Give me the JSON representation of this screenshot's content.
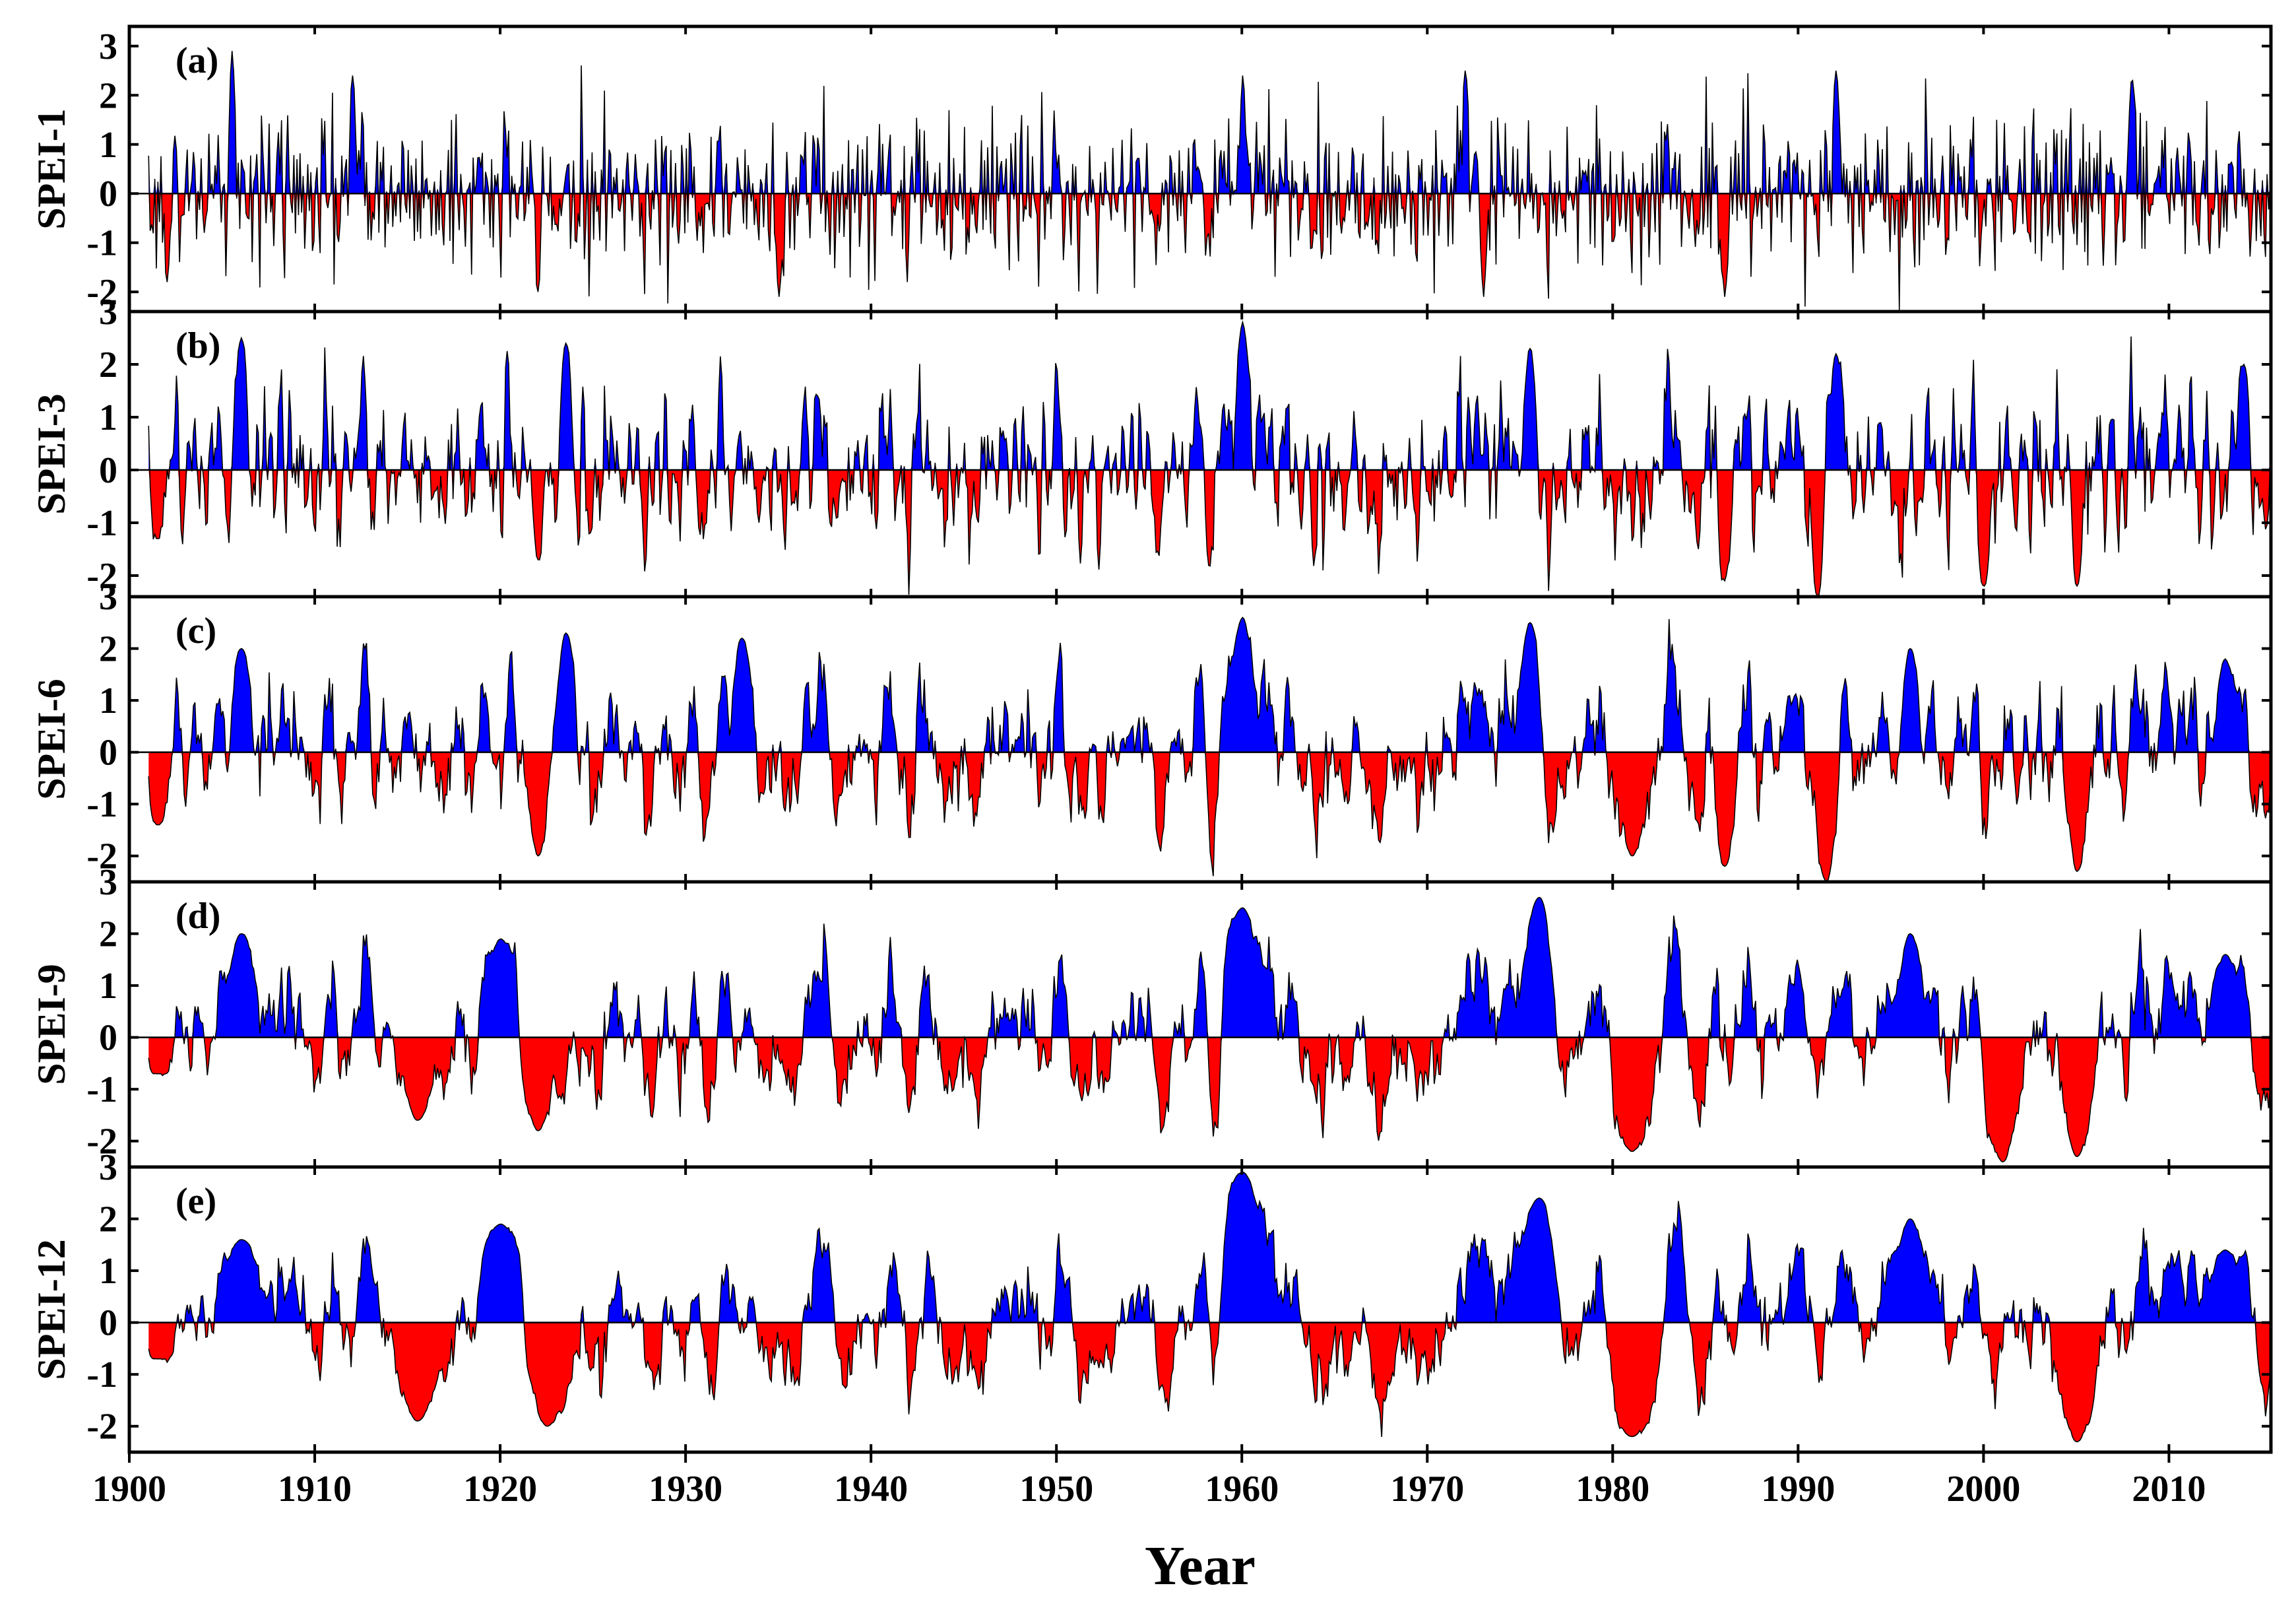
{
  "chart_data": {
    "type": "area",
    "xlabel": "Year",
    "xlim": [
      1900,
      2015.5
    ],
    "x_ticks": [
      1900,
      1910,
      1920,
      1930,
      1940,
      1950,
      1960,
      1970,
      1980,
      1990,
      2000,
      2010
    ],
    "x_tick_labels": [
      "1900",
      "1910",
      "1920",
      "1930",
      "1940",
      "1950",
      "1960",
      "1970",
      "1980",
      "1990",
      "2000",
      "2010"
    ],
    "positive_color": "#0000ff",
    "negative_color": "#ff0000",
    "outline_color": "#000000",
    "background_color": "#ffffff",
    "panels": [
      {
        "id": "a",
        "label": "(a)",
        "ylabel": "SPEI-1",
        "ylim": [
          -2.4,
          3.4
        ],
        "yticks": [
          -2,
          -1,
          0,
          1,
          2,
          3
        ],
        "ytick_labels": [
          "-2",
          "-1",
          "0",
          "1",
          "2",
          "3"
        ],
        "scale_months": 1,
        "anchors": [
          [
            1902,
            -1.8
          ],
          [
            1905.5,
            2.9
          ],
          [
            1912,
            2.4
          ],
          [
            1922,
            -2.0
          ],
          [
            1935,
            -2.1
          ],
          [
            1960,
            2.4
          ],
          [
            1972,
            2.5
          ],
          [
            1973,
            -2.1
          ],
          [
            1986,
            -2.1
          ],
          [
            1992,
            2.5
          ],
          [
            2008,
            2.3
          ]
        ]
      },
      {
        "id": "b",
        "label": "(b)",
        "ylabel": "SPEI-3",
        "ylim": [
          -2.4,
          3.0
        ],
        "yticks": [
          -2,
          -1,
          0,
          1,
          2,
          3
        ],
        "ytick_labels": [
          "-2",
          "-1",
          "0",
          "1",
          "2",
          "3"
        ],
        "scale_months": 3,
        "anchors": [
          [
            1901.5,
            -1.3
          ],
          [
            1906,
            2.5
          ],
          [
            1922,
            -1.7
          ],
          [
            1923.5,
            2.4
          ],
          [
            1960,
            2.8
          ],
          [
            1975.5,
            2.3
          ],
          [
            1986,
            -2.1
          ],
          [
            1991,
            -2.4
          ],
          [
            1992,
            2.2
          ],
          [
            2000,
            -2.2
          ],
          [
            2005,
            -2.2
          ],
          [
            2014,
            2.0
          ]
        ]
      },
      {
        "id": "c",
        "label": "(c)",
        "ylabel": "SPEI-6",
        "ylim": [
          -2.5,
          3.0
        ],
        "yticks": [
          -2,
          -1,
          0,
          1,
          2,
          3
        ],
        "ytick_labels": [
          "-2",
          "-1",
          "0",
          "1",
          "2",
          "3"
        ],
        "scale_months": 6,
        "anchors": [
          [
            1901.5,
            -1.4
          ],
          [
            1906,
            2.0
          ],
          [
            1922,
            -2.0
          ],
          [
            1923.5,
            2.3
          ],
          [
            1933,
            2.2
          ],
          [
            1960,
            2.6
          ],
          [
            1975.5,
            2.5
          ],
          [
            1981,
            -2.0
          ],
          [
            1986,
            -2.2
          ],
          [
            1991.5,
            -2.5
          ],
          [
            1996,
            2.0
          ],
          [
            2005,
            -2.3
          ],
          [
            2013,
            1.8
          ]
        ]
      },
      {
        "id": "d",
        "label": "(d)",
        "ylabel": "SPEI-9",
        "ylim": [
          -2.5,
          3.0
        ],
        "yticks": [
          -2,
          -1,
          0,
          1,
          2,
          3
        ],
        "ytick_labels": [
          "-2",
          "-1",
          "0",
          "1",
          "2",
          "3"
        ],
        "scale_months": 9,
        "anchors": [
          [
            1901.5,
            -0.7
          ],
          [
            1906,
            2.0
          ],
          [
            1915.5,
            -1.6
          ],
          [
            1920,
            1.9
          ],
          [
            1922,
            -1.8
          ],
          [
            1960,
            2.5
          ],
          [
            1976,
            2.7
          ],
          [
            1981,
            -2.2
          ],
          [
            1996,
            2.0
          ],
          [
            2001,
            -2.4
          ],
          [
            2005,
            -2.3
          ],
          [
            2013,
            1.6
          ]
        ]
      },
      {
        "id": "e",
        "label": "(e)",
        "ylabel": "SPEI-12",
        "ylim": [
          -2.5,
          3.0
        ],
        "yticks": [
          -2,
          -1,
          0,
          1,
          2,
          3
        ],
        "ytick_labels": [
          "-2",
          "-1",
          "0",
          "1",
          "2",
          "3"
        ],
        "scale_months": 12,
        "anchors": [
          [
            1901.5,
            -0.7
          ],
          [
            1906,
            1.6
          ],
          [
            1915.5,
            -1.9
          ],
          [
            1920,
            1.9
          ],
          [
            1922.5,
            -2.0
          ],
          [
            1960,
            2.9
          ],
          [
            1976,
            2.4
          ],
          [
            1981,
            -2.2
          ],
          [
            1996,
            2.0
          ],
          [
            2005,
            -2.3
          ],
          [
            2013,
            1.4
          ]
        ]
      }
    ]
  }
}
